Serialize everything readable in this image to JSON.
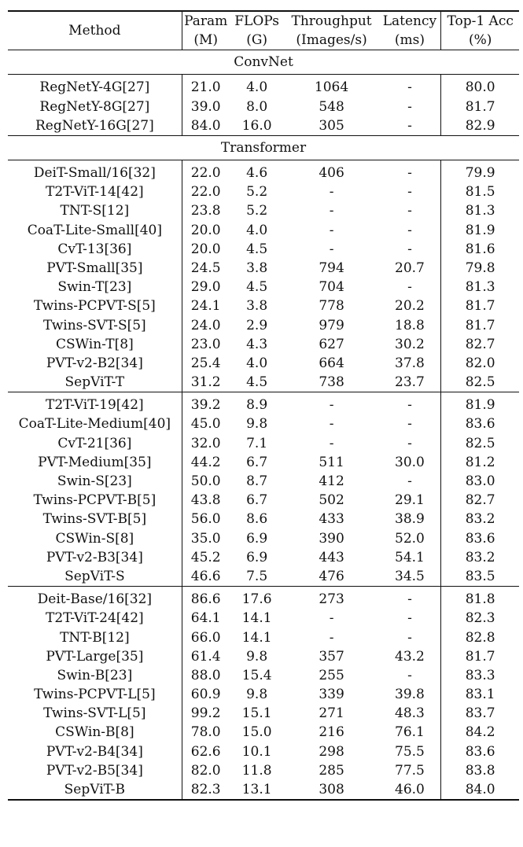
{
  "header": {
    "method": "Method",
    "param": "Param",
    "param_unit": "(M)",
    "flops": "FLOPs",
    "flops_unit": "(G)",
    "throughput": "Throughput",
    "throughput_unit": "(Images/s)",
    "latency": "Latency",
    "latency_unit": "(ms)",
    "top1": "Top-1 Acc",
    "top1_unit": "(%)"
  },
  "sections": [
    {
      "title": "ConvNet",
      "groups": [
        [
          {
            "method": "RegNetY-4G[27]",
            "param": "21.0",
            "flops": "4.0",
            "throughput": "1064",
            "latency": "-",
            "top1": "80.0",
            "bold": false
          },
          {
            "method": "RegNetY-8G[27]",
            "param": "39.0",
            "flops": "8.0",
            "throughput": "548",
            "latency": "-",
            "top1": "81.7",
            "bold": false
          },
          {
            "method": "RegNetY-16G[27]",
            "param": "84.0",
            "flops": "16.0",
            "throughput": "305",
            "latency": "-",
            "top1": "82.9",
            "bold": false
          }
        ]
      ]
    },
    {
      "title": "Transformer",
      "groups": [
        [
          {
            "method": "DeiT-Small/16[32]",
            "param": "22.0",
            "flops": "4.6",
            "throughput": "406",
            "latency": "-",
            "top1": "79.9",
            "bold": false
          },
          {
            "method": "T2T-ViT-14[42]",
            "param": "22.0",
            "flops": "5.2",
            "throughput": "-",
            "latency": "-",
            "top1": "81.5",
            "bold": false
          },
          {
            "method": "TNT-S[12]",
            "param": "23.8",
            "flops": "5.2",
            "throughput": "-",
            "latency": "-",
            "top1": "81.3",
            "bold": false
          },
          {
            "method": "CoaT-Lite-Small[40]",
            "param": "20.0",
            "flops": "4.0",
            "throughput": "-",
            "latency": "-",
            "top1": "81.9",
            "bold": false
          },
          {
            "method": "CvT-13[36]",
            "param": "20.0",
            "flops": "4.5",
            "throughput": "-",
            "latency": "-",
            "top1": "81.6",
            "bold": false
          },
          {
            "method": "PVT-Small[35]",
            "param": "24.5",
            "flops": "3.8",
            "throughput": "794",
            "latency": "20.7",
            "top1": "79.8",
            "bold": false
          },
          {
            "method": "Swin-T[23]",
            "param": "29.0",
            "flops": "4.5",
            "throughput": "704",
            "latency": "-",
            "top1": "81.3",
            "bold": false
          },
          {
            "method": "Twins-PCPVT-S[5]",
            "param": "24.1",
            "flops": "3.8",
            "throughput": "778",
            "latency": "20.2",
            "top1": "81.7",
            "bold": false
          },
          {
            "method": "Twins-SVT-S[5]",
            "param": "24.0",
            "flops": "2.9",
            "throughput": "979",
            "latency": "18.8",
            "top1": "81.7",
            "bold": false
          },
          {
            "method": "CSWin-T[8]",
            "param": "23.0",
            "flops": "4.3",
            "throughput": "627",
            "latency": "30.2",
            "top1": "82.7",
            "bold": false
          },
          {
            "method": "PVT-v2-B2[34]",
            "param": "25.4",
            "flops": "4.0",
            "throughput": "664",
            "latency": "37.8",
            "top1": "82.0",
            "bold": false
          },
          {
            "method": "SepViT-T",
            "param": "31.2",
            "flops": "4.5",
            "throughput": "738",
            "latency": "23.7",
            "top1": "82.5",
            "bold": true
          }
        ],
        [
          {
            "method": "T2T-ViT-19[42]",
            "param": "39.2",
            "flops": "8.9",
            "throughput": "-",
            "latency": "-",
            "top1": "81.9",
            "bold": false
          },
          {
            "method": "CoaT-Lite-Medium[40]",
            "param": "45.0",
            "flops": "9.8",
            "throughput": "-",
            "latency": "-",
            "top1": "83.6",
            "bold": false
          },
          {
            "method": "CvT-21[36]",
            "param": "32.0",
            "flops": "7.1",
            "throughput": "-",
            "latency": "-",
            "top1": "82.5",
            "bold": false
          },
          {
            "method": "PVT-Medium[35]",
            "param": "44.2",
            "flops": "6.7",
            "throughput": "511",
            "latency": "30.0",
            "top1": "81.2",
            "bold": false
          },
          {
            "method": "Swin-S[23]",
            "param": "50.0",
            "flops": "8.7",
            "throughput": "412",
            "latency": "-",
            "top1": "83.0",
            "bold": false
          },
          {
            "method": "Twins-PCPVT-B[5]",
            "param": "43.8",
            "flops": "6.7",
            "throughput": "502",
            "latency": "29.1",
            "top1": "82.7",
            "bold": false
          },
          {
            "method": "Twins-SVT-B[5]",
            "param": "56.0",
            "flops": "8.6",
            "throughput": "433",
            "latency": "38.9",
            "top1": "83.2",
            "bold": false
          },
          {
            "method": "CSWin-S[8]",
            "param": "35.0",
            "flops": "6.9",
            "throughput": "390",
            "latency": "52.0",
            "top1": "83.6",
            "bold": false
          },
          {
            "method": "PVT-v2-B3[34]",
            "param": "45.2",
            "flops": "6.9",
            "throughput": "443",
            "latency": "54.1",
            "top1": "83.2",
            "bold": false
          },
          {
            "method": "SepViT-S",
            "param": "46.6",
            "flops": "7.5",
            "throughput": "476",
            "latency": "34.5",
            "top1": "83.5",
            "bold": true
          }
        ],
        [
          {
            "method": "Deit-Base/16[32]",
            "param": "86.6",
            "flops": "17.6",
            "throughput": "273",
            "latency": "-",
            "top1": "81.8",
            "bold": false
          },
          {
            "method": "T2T-ViT-24[42]",
            "param": "64.1",
            "flops": "14.1",
            "throughput": "-",
            "latency": "-",
            "top1": "82.3",
            "bold": false
          },
          {
            "method": "TNT-B[12]",
            "param": "66.0",
            "flops": "14.1",
            "throughput": "-",
            "latency": "-",
            "top1": "82.8",
            "bold": false
          },
          {
            "method": "PVT-Large[35]",
            "param": "61.4",
            "flops": "9.8",
            "throughput": "357",
            "latency": "43.2",
            "top1": "81.7",
            "bold": false
          },
          {
            "method": "Swin-B[23]",
            "param": "88.0",
            "flops": "15.4",
            "throughput": "255",
            "latency": "-",
            "top1": "83.3",
            "bold": false
          },
          {
            "method": "Twins-PCPVT-L[5]",
            "param": "60.9",
            "flops": "9.8",
            "throughput": "339",
            "latency": "39.8",
            "top1": "83.1",
            "bold": false
          },
          {
            "method": "Twins-SVT-L[5]",
            "param": "99.2",
            "flops": "15.1",
            "throughput": "271",
            "latency": "48.3",
            "top1": "83.7",
            "bold": false
          },
          {
            "method": "CSWin-B[8]",
            "param": "78.0",
            "flops": "15.0",
            "throughput": "216",
            "latency": "76.1",
            "top1": "84.2",
            "bold": false
          },
          {
            "method": "PVT-v2-B4[34]",
            "param": "62.6",
            "flops": "10.1",
            "throughput": "298",
            "latency": "75.5",
            "top1": "83.6",
            "bold": false
          },
          {
            "method": "PVT-v2-B5[34]",
            "param": "82.0",
            "flops": "11.8",
            "throughput": "285",
            "latency": "77.5",
            "top1": "83.8",
            "bold": false
          },
          {
            "method": "SepViT-B",
            "param": "82.3",
            "flops": "13.1",
            "throughput": "308",
            "latency": "46.0",
            "top1": "84.0",
            "bold": true
          }
        ]
      ]
    }
  ]
}
